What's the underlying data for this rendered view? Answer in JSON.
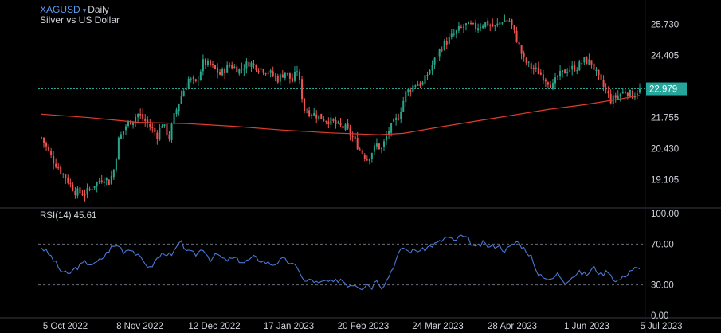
{
  "header": {
    "symbol": "XAGUSD",
    "caret": "▾",
    "timeframe": "Daily",
    "description": "Silver vs US Dollar"
  },
  "rsi_panel": {
    "label": "RSI(14)",
    "value": "45.61"
  },
  "colors": {
    "up": "#2aa58b",
    "down": "#ef5350",
    "ma": "#e33b2e",
    "rsi": "#4b78d8",
    "price_line": "#26a69a",
    "axis_text": "#d1d4dc",
    "separator": "#3a3d45"
  },
  "chart_data": [
    {
      "type": "candlestick",
      "symbol": "XAGUSD",
      "timeframe": "Daily",
      "x_labels": [
        "5 Oct 2022",
        "8 Nov 2022",
        "12 Dec 2022",
        "17 Jan 2023",
        "20 Feb 2023",
        "24 Mar 2023",
        "28 Apr 2023",
        "1 Jun 2023",
        "5 Jul 2023"
      ],
      "y_ticks": [
        25.73,
        24.405,
        23.08,
        21.755,
        20.43,
        19.105
      ],
      "y_tick_labels": [
        "25.730",
        "24.405",
        "21.755",
        "20.430",
        "19.105"
      ],
      "ylim": [
        18.0,
        26.5
      ],
      "last_price": 22.979,
      "last_price_label": "22.979",
      "close_path": [
        [
          0,
          20.9
        ],
        [
          5,
          19.9
        ],
        [
          10,
          19.2
        ],
        [
          14,
          18.6
        ],
        [
          18,
          18.5
        ],
        [
          22,
          18.9
        ],
        [
          26,
          19.2
        ],
        [
          28,
          19.0
        ],
        [
          30,
          19.5
        ],
        [
          32,
          20.8
        ],
        [
          35,
          21.4
        ],
        [
          40,
          21.9
        ],
        [
          44,
          21.5
        ],
        [
          48,
          21.0
        ],
        [
          50,
          21.5
        ],
        [
          53,
          20.9
        ],
        [
          55,
          21.8
        ],
        [
          58,
          22.7
        ],
        [
          61,
          23.4
        ],
        [
          64,
          23.2
        ],
        [
          67,
          24.1
        ],
        [
          70,
          24.0
        ],
        [
          74,
          23.6
        ],
        [
          78,
          24.0
        ],
        [
          82,
          23.8
        ],
        [
          86,
          24.1
        ],
        [
          90,
          23.9
        ],
        [
          94,
          23.7
        ],
        [
          98,
          23.4
        ],
        [
          101,
          23.7
        ],
        [
          104,
          23.3
        ],
        [
          106,
          23.8
        ],
        [
          109,
          22.1
        ],
        [
          113,
          21.9
        ],
        [
          117,
          21.7
        ],
        [
          120,
          21.6
        ],
        [
          123,
          21.4
        ],
        [
          126,
          21.3
        ],
        [
          129,
          20.9
        ],
        [
          132,
          20.4
        ],
        [
          135,
          20.0
        ],
        [
          137,
          20.3
        ],
        [
          139,
          20.6
        ],
        [
          141,
          20.4
        ],
        [
          144,
          21.2
        ],
        [
          148,
          21.8
        ],
        [
          151,
          22.8
        ],
        [
          155,
          23.2
        ],
        [
          158,
          23.2
        ],
        [
          162,
          24.0
        ],
        [
          166,
          24.8
        ],
        [
          170,
          25.2
        ],
        [
          173,
          25.5
        ],
        [
          176,
          25.7
        ],
        [
          180,
          25.6
        ],
        [
          184,
          25.8
        ],
        [
          188,
          25.6
        ],
        [
          191,
          25.9
        ],
        [
          194,
          25.9
        ],
        [
          197,
          25.1
        ],
        [
          200,
          24.2
        ],
        [
          203,
          23.9
        ],
        [
          206,
          23.7
        ],
        [
          209,
          23.4
        ],
        [
          212,
          23.1
        ],
        [
          214,
          23.5
        ],
        [
          218,
          23.8
        ],
        [
          222,
          23.9
        ],
        [
          225,
          24.2
        ],
        [
          228,
          24.1
        ],
        [
          231,
          23.4
        ],
        [
          234,
          22.9
        ],
        [
          236,
          22.5
        ],
        [
          239,
          22.7
        ],
        [
          242,
          22.9
        ],
        [
          245,
          22.7
        ],
        [
          248,
          22.979
        ]
      ],
      "ma": {
        "name": "",
        "values": [
          [
            0,
            21.9
          ],
          [
            20,
            21.75
          ],
          [
            40,
            21.55
          ],
          [
            60,
            21.5
          ],
          [
            80,
            21.38
          ],
          [
            100,
            21.22
          ],
          [
            120,
            21.1
          ],
          [
            140,
            21.02
          ],
          [
            150,
            21.08
          ],
          [
            165,
            21.35
          ],
          [
            180,
            21.6
          ],
          [
            195,
            21.85
          ],
          [
            210,
            22.1
          ],
          [
            225,
            22.3
          ],
          [
            240,
            22.55
          ],
          [
            248,
            22.7
          ]
        ]
      }
    },
    {
      "type": "line",
      "title": "RSI(14)",
      "value_label": "45.61",
      "ylim": [
        0,
        100
      ],
      "y_ticks": [
        100.0,
        70.0,
        30.0,
        0.0
      ],
      "y_tick_labels": [
        "100.00",
        "70.00",
        "30.00",
        "0.00"
      ],
      "dashed_levels": [
        70,
        30
      ],
      "x_index_range": [
        0,
        248
      ],
      "values": [
        [
          0,
          67
        ],
        [
          4,
          58
        ],
        [
          8,
          44
        ],
        [
          11,
          40
        ],
        [
          14,
          46
        ],
        [
          18,
          52
        ],
        [
          22,
          50
        ],
        [
          26,
          58
        ],
        [
          29,
          67
        ],
        [
          32,
          69
        ],
        [
          34,
          63
        ],
        [
          37,
          66
        ],
        [
          40,
          58
        ],
        [
          43,
          52
        ],
        [
          45,
          46
        ],
        [
          48,
          56
        ],
        [
          51,
          62
        ],
        [
          54,
          58
        ],
        [
          56,
          67
        ],
        [
          58,
          71
        ],
        [
          61,
          62
        ],
        [
          64,
          60
        ],
        [
          67,
          66
        ],
        [
          70,
          55
        ],
        [
          73,
          60
        ],
        [
          76,
          54
        ],
        [
          80,
          56
        ],
        [
          84,
          52
        ],
        [
          88,
          57
        ],
        [
          92,
          53
        ],
        [
          96,
          50
        ],
        [
          100,
          55
        ],
        [
          103,
          52
        ],
        [
          107,
          44
        ],
        [
          109,
          33
        ],
        [
          112,
          35
        ],
        [
          115,
          31
        ],
        [
          118,
          34
        ],
        [
          121,
          32
        ],
        [
          124,
          36
        ],
        [
          127,
          30
        ],
        [
          130,
          31
        ],
        [
          133,
          27
        ],
        [
          135,
          31
        ],
        [
          137,
          28
        ],
        [
          139,
          36
        ],
        [
          141,
          28
        ],
        [
          143,
          34
        ],
        [
          146,
          49
        ],
        [
          148,
          60
        ],
        [
          150,
          67
        ],
        [
          152,
          63
        ],
        [
          155,
          64
        ],
        [
          158,
          64
        ],
        [
          161,
          68
        ],
        [
          165,
          72
        ],
        [
          168,
          77
        ],
        [
          171,
          73
        ],
        [
          174,
          78
        ],
        [
          177,
          74
        ],
        [
          180,
          66
        ],
        [
          183,
          71
        ],
        [
          186,
          67
        ],
        [
          189,
          69
        ],
        [
          192,
          64
        ],
        [
          195,
          68
        ],
        [
          197,
          73
        ],
        [
          200,
          66
        ],
        [
          203,
          58
        ],
        [
          205,
          42
        ],
        [
          208,
          39
        ],
        [
          211,
          34
        ],
        [
          214,
          41
        ],
        [
          217,
          33
        ],
        [
          220,
          38
        ],
        [
          223,
          42
        ],
        [
          226,
          40
        ],
        [
          229,
          47
        ],
        [
          232,
          40
        ],
        [
          235,
          44
        ],
        [
          238,
          33
        ],
        [
          241,
          37
        ],
        [
          244,
          44
        ],
        [
          246,
          46
        ],
        [
          248,
          45.61
        ]
      ]
    }
  ]
}
